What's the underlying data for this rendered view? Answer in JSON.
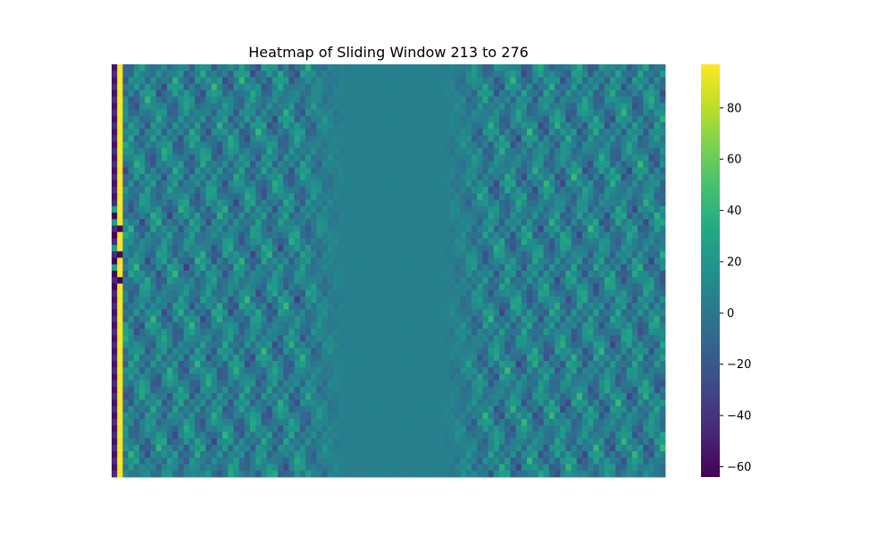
{
  "chart_data": {
    "type": "heatmap",
    "title": "Heatmap of Sliding Window 213 to 276",
    "xlabel": "",
    "ylabel": "",
    "colormap": "viridis",
    "value_range": [
      -64,
      97
    ],
    "colorbar": {
      "placement": "right",
      "ticks": [
        {
          "value": 80,
          "label": "80"
        },
        {
          "value": 60,
          "label": "60"
        },
        {
          "value": 40,
          "label": "40"
        },
        {
          "value": 20,
          "label": "20"
        },
        {
          "value": 0,
          "label": "0"
        },
        {
          "value": -20,
          "label": "−20"
        },
        {
          "value": -40,
          "label": "−40"
        },
        {
          "value": -60,
          "label": "−60"
        }
      ]
    },
    "grid": false,
    "n_rows": 64,
    "n_cols": 100,
    "columns": {
      "first_col": {
        "base": -50,
        "dark_rows": [
          23,
          26,
          30,
          32,
          34
        ],
        "mid_rows": [
          22,
          24,
          28,
          31
        ],
        "alt_amp": 6
      },
      "second_col": {
        "base": 95,
        "dark_rows": [
          25,
          29,
          33
        ],
        "alt_amp": 2
      },
      "flat_band": {
        "start_col": 42,
        "end_col": 59,
        "value": 5
      },
      "pattern_amp": 38
    }
  }
}
